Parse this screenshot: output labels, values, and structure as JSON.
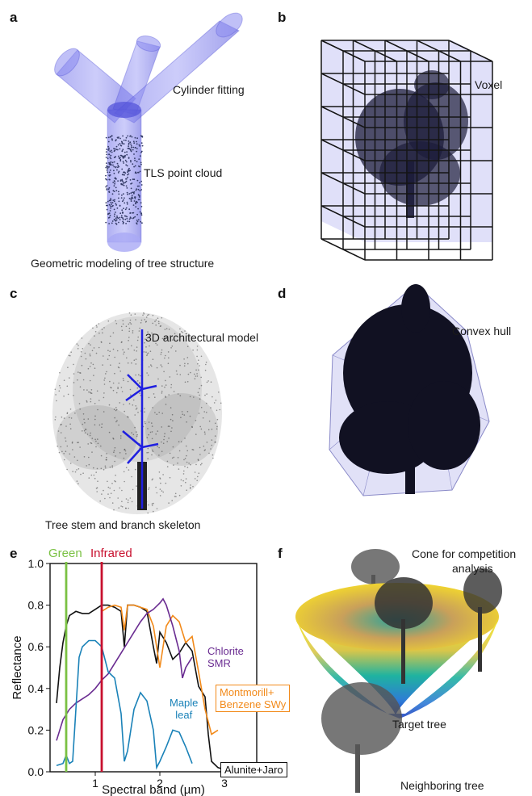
{
  "panels": {
    "a": {
      "label": "a",
      "annotations": {
        "cylinder": "Cylinder fitting",
        "points": "TLS point cloud"
      },
      "caption": "Geometric modeling of tree structure"
    },
    "b": {
      "label": "b",
      "annotations": {
        "voxel": "Voxel"
      }
    },
    "c": {
      "label": "c",
      "annotations": {
        "model": "3D architectural model"
      },
      "caption": "Tree stem and branch skeleton"
    },
    "d": {
      "label": "d",
      "annotations": {
        "hull": "Convex hull"
      }
    },
    "e": {
      "label": "e"
    },
    "f": {
      "label": "f",
      "annotations": {
        "cone_line1": "Cone for competition",
        "cone_line2": "analysis",
        "target": "Target tree",
        "neighbor": "Neighboring tree"
      }
    }
  },
  "chart_data": {
    "type": "line",
    "xlabel": "Spectral band (µm)",
    "ylabel": "Reflectance",
    "xlim": [
      0.3,
      3.5
    ],
    "ylim": [
      0,
      1.0
    ],
    "xticks": [
      1,
      2,
      3
    ],
    "yticks": [
      0,
      0.2,
      0.4,
      0.6,
      0.8,
      1.0
    ],
    "grid": false,
    "vlines": [
      {
        "label": "Green",
        "x": 0.55,
        "color": "#7ac143"
      },
      {
        "label": "Infrared",
        "x": 1.1,
        "color": "#c8102e"
      }
    ],
    "series": [
      {
        "name": "Alunite+Jaro",
        "color": "#111111",
        "x": [
          0.4,
          0.45,
          0.5,
          0.55,
          0.6,
          0.7,
          0.8,
          0.9,
          1.0,
          1.1,
          1.2,
          1.3,
          1.4,
          1.45,
          1.5,
          1.6,
          1.7,
          1.8,
          1.9,
          1.95,
          2.0,
          2.1,
          2.2,
          2.3,
          2.4,
          2.5,
          2.6,
          2.7,
          2.75,
          2.8,
          2.9,
          3.0
        ],
        "y": [
          0.33,
          0.5,
          0.62,
          0.7,
          0.75,
          0.77,
          0.76,
          0.76,
          0.78,
          0.8,
          0.8,
          0.79,
          0.77,
          0.6,
          0.8,
          0.8,
          0.79,
          0.77,
          0.6,
          0.52,
          0.67,
          0.62,
          0.54,
          0.57,
          0.62,
          0.58,
          0.41,
          0.36,
          0.18,
          0.05,
          0.02,
          0.01
        ]
      },
      {
        "name": "Montmorill+\nBenzene SWy",
        "color": "#f28a1a",
        "x": [
          1.1,
          1.2,
          1.3,
          1.4,
          1.45,
          1.5,
          1.6,
          1.7,
          1.8,
          1.9,
          2.0,
          2.1,
          2.2,
          2.3,
          2.4,
          2.5,
          2.6,
          2.7,
          2.8,
          2.9
        ],
        "y": [
          0.77,
          0.79,
          0.8,
          0.79,
          0.68,
          0.8,
          0.8,
          0.79,
          0.78,
          0.7,
          0.5,
          0.7,
          0.75,
          0.72,
          0.62,
          0.65,
          0.48,
          0.3,
          0.18,
          0.2
        ]
      },
      {
        "name": "Chlorite\nSMR",
        "color": "#6a2c91",
        "x": [
          0.4,
          0.5,
          0.6,
          0.7,
          0.8,
          0.9,
          1.0,
          1.1,
          1.2,
          1.3,
          1.4,
          1.5,
          1.6,
          1.7,
          1.8,
          1.9,
          2.0,
          2.05,
          2.1,
          2.2,
          2.3,
          2.35,
          2.4,
          2.5
        ],
        "y": [
          0.15,
          0.25,
          0.3,
          0.33,
          0.35,
          0.37,
          0.4,
          0.44,
          0.47,
          0.52,
          0.57,
          0.62,
          0.67,
          0.72,
          0.76,
          0.78,
          0.81,
          0.83,
          0.8,
          0.7,
          0.58,
          0.45,
          0.5,
          0.55
        ]
      },
      {
        "name": "Maple\nleaf",
        "color": "#1a82b8",
        "x": [
          0.4,
          0.5,
          0.55,
          0.6,
          0.65,
          0.7,
          0.75,
          0.8,
          0.9,
          1.0,
          1.1,
          1.2,
          1.3,
          1.4,
          1.45,
          1.5,
          1.6,
          1.7,
          1.8,
          1.9,
          1.95,
          2.0,
          2.1,
          2.2,
          2.3,
          2.4,
          2.5
        ],
        "y": [
          0.03,
          0.04,
          0.08,
          0.04,
          0.05,
          0.3,
          0.55,
          0.6,
          0.63,
          0.63,
          0.6,
          0.48,
          0.45,
          0.28,
          0.05,
          0.1,
          0.3,
          0.38,
          0.34,
          0.2,
          0.02,
          0.05,
          0.12,
          0.2,
          0.19,
          0.12,
          0.04
        ]
      }
    ]
  }
}
